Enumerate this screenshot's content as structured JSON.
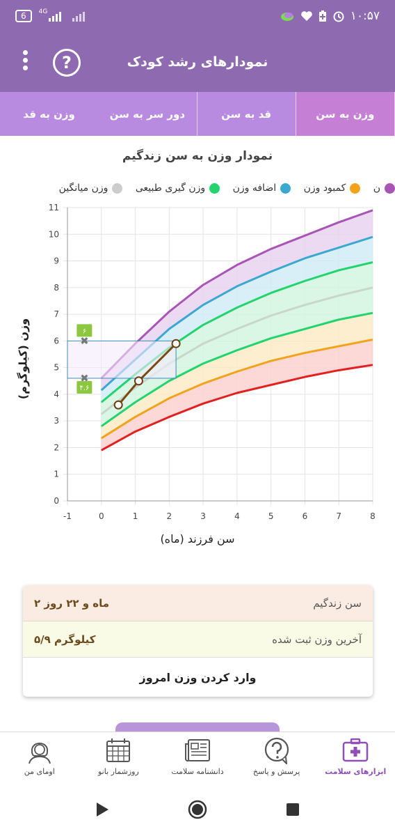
{
  "status": {
    "battery": "6",
    "network": "4G",
    "time": "۱۰:۵۷"
  },
  "appbar": {
    "title": "نمودارهای رشد کودک",
    "help_symbol": "?"
  },
  "tabs": [
    {
      "label": "وزن به سن",
      "active": true
    },
    {
      "label": "قد به سن",
      "active": false
    },
    {
      "label": "دور سر به سن",
      "active": false
    },
    {
      "label": "وزن به قد",
      "active": false
    }
  ],
  "chart_title": "نمودار وزن به سن زندگیم",
  "legend": [
    {
      "label": "ن",
      "color": "#a855b5"
    },
    {
      "label": "کمبود وزن",
      "color": "#f2a31c"
    },
    {
      "label": "اضافه وزن",
      "color": "#3aa8cf"
    },
    {
      "label": "وزن گیری طبیعی",
      "color": "#22d36e"
    },
    {
      "label": "وزن میانگین",
      "color": "#cccccc"
    }
  ],
  "chart_data": {
    "type": "line",
    "xlabel": "سن فرزند (ماه)",
    "ylabel": "وزن (کیلوگرم)",
    "xlim": [
      -1,
      8
    ],
    "ylim": [
      0,
      11
    ],
    "x_ticks": [
      "-1",
      "0",
      "1",
      "2",
      "3",
      "4",
      "5",
      "6",
      "7",
      "8"
    ],
    "y_ticks": [
      "0",
      "1",
      "2",
      "3",
      "4",
      "5",
      "6",
      "7",
      "8",
      "9",
      "10",
      "11"
    ],
    "x": [
      0,
      1,
      2,
      3,
      4,
      5,
      6,
      7,
      8
    ],
    "series": [
      {
        "color": "#a855b5",
        "values": [
          4.6,
          5.9,
          7.1,
          8.1,
          8.85,
          9.45,
          9.95,
          10.45,
          10.9
        ]
      },
      {
        "color": "#3aa8cf",
        "values": [
          4.15,
          5.3,
          6.45,
          7.35,
          8.05,
          8.6,
          9.1,
          9.5,
          9.9
        ]
      },
      {
        "color": "#22d36e",
        "values": [
          3.7,
          4.75,
          5.75,
          6.6,
          7.25,
          7.8,
          8.25,
          8.65,
          8.95
        ]
      },
      {
        "color": "#c8d6cc",
        "values": [
          3.25,
          4.25,
          5.15,
          5.9,
          6.45,
          6.95,
          7.35,
          7.7,
          8.0
        ]
      },
      {
        "color": "#22d36e",
        "values": [
          2.8,
          3.7,
          4.5,
          5.15,
          5.65,
          6.1,
          6.45,
          6.8,
          7.05
        ]
      },
      {
        "color": "#f2a31c",
        "values": [
          2.35,
          3.15,
          3.85,
          4.4,
          4.85,
          5.25,
          5.55,
          5.8,
          6.05
        ]
      },
      {
        "color": "#e32020",
        "values": [
          1.9,
          2.6,
          3.15,
          3.65,
          4.05,
          4.35,
          4.65,
          4.9,
          5.1
        ]
      }
    ],
    "child_points": [
      {
        "x": 0.5,
        "y": 3.6
      },
      {
        "x": 1.1,
        "y": 4.5
      },
      {
        "x": 2.2,
        "y": 5.9
      }
    ],
    "range_box": {
      "x0": -1,
      "x1": 2.2,
      "y0": 4.6,
      "y1": 6.0
    },
    "range_markers": [
      {
        "y": 6.0,
        "label": "۶"
      },
      {
        "y": 4.6,
        "label": "۴.۶"
      }
    ]
  },
  "card": {
    "age_label": "سن زندگیم",
    "age_value": "۲ ماه و ۲۲ روز",
    "weight_label": "آخرین وزن ثبت شده",
    "weight_value": "۵/۹ کیلوگرم",
    "action_label": "وارد کردن وزن امروز"
  },
  "bottom_nav": [
    {
      "label": "ابزارهای سلامت",
      "icon": "health-kit-icon",
      "active": true
    },
    {
      "label": "پرسش و پاسخ",
      "icon": "question-bubble-icon",
      "active": false
    },
    {
      "label": "دانشنامه سلامت",
      "icon": "newspaper-icon",
      "active": false
    },
    {
      "label": "روزشمار بانو",
      "icon": "calendar-icon",
      "active": false
    },
    {
      "label": "اومای من",
      "icon": "profile-avatar-icon",
      "active": false
    }
  ]
}
